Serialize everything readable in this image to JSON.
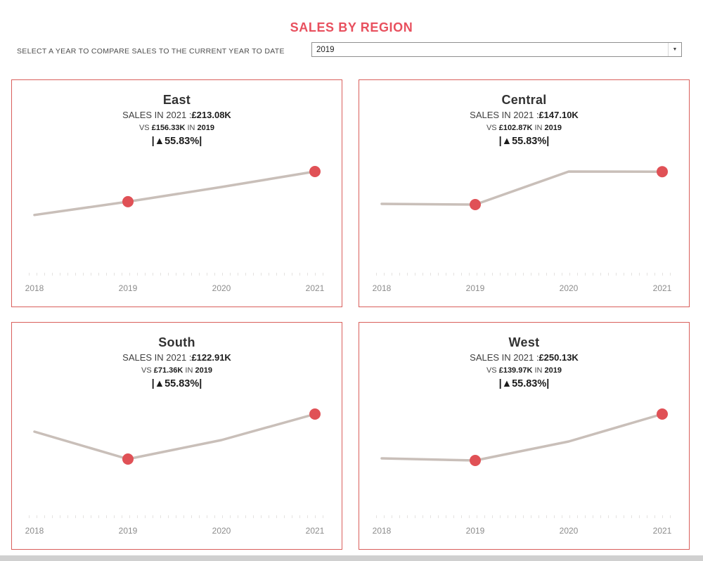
{
  "page": {
    "title": "SALES BY REGION",
    "filter_label": "SELECT A YEAR TO COMPARE SALES TO THE CURRENT YEAR TO DATE",
    "year_dropdown": {
      "value": "2019",
      "arrow_icon": "▼"
    }
  },
  "colors": {
    "title": "#e8505e",
    "panel_border": "#d95f5b",
    "marker": "#e05156",
    "line": "#c9bfb9",
    "axis_label": "#8c8c8c",
    "tick": "#e4e2e0"
  },
  "chart_data": [
    {
      "type": "line",
      "region": "East",
      "x": [
        "2018",
        "2019",
        "2020",
        "2021"
      ],
      "values_k": [
        131.2,
        156.33,
        184.0,
        213.08
      ],
      "ylim": [
        125.7,
        213.08
      ],
      "marker_years": [
        "2019",
        "2021"
      ],
      "sales_prefix": "SALES IN 2021 :",
      "sales_value": "£213.08K",
      "vs_prefix": "VS ",
      "vs_value": "£156.33K",
      "vs_mid": " IN ",
      "vs_year": "2019",
      "change_label": "|▲55.83%|"
    },
    {
      "type": "line",
      "region": "Central",
      "x": [
        "2018",
        "2019",
        "2020",
        "2021"
      ],
      "values_k": [
        103.8,
        102.87,
        147.3,
        147.1
      ],
      "ylim": [
        84.9,
        147.3
      ],
      "marker_years": [
        "2019",
        "2021"
      ],
      "sales_prefix": "SALES IN 2021 :",
      "sales_value": "£147.10K",
      "vs_prefix": "VS ",
      "vs_value": "£102.87K",
      "vs_mid": " IN ",
      "vs_year": "2019",
      "change_label": "|▲55.83%|"
    },
    {
      "type": "line",
      "region": "South",
      "x": [
        "2018",
        "2019",
        "2020",
        "2021"
      ],
      "values_k": [
        102.8,
        71.36,
        93.1,
        122.91
      ],
      "ylim": [
        69.75,
        122.91
      ],
      "marker_years": [
        "2019",
        "2021"
      ],
      "sales_prefix": "SALES IN 2021 :",
      "sales_value": "£122.91K",
      "vs_prefix": "VS ",
      "vs_value": "£71.36K",
      "vs_mid": " IN ",
      "vs_year": "2019",
      "change_label": "|▲55.83%|"
    },
    {
      "type": "line",
      "region": "West",
      "x": [
        "2018",
        "2019",
        "2020",
        "2021"
      ],
      "values_k": [
        145.0,
        139.97,
        185.0,
        250.13
      ],
      "ylim": [
        139.97,
        250.13
      ],
      "marker_years": [
        "2019",
        "2021"
      ],
      "sales_prefix": "SALES IN 2021 :",
      "sales_value": "£250.13K",
      "vs_prefix": "VS ",
      "vs_value": "£139.97K",
      "vs_mid": " IN ",
      "vs_year": "2019",
      "change_label": "|▲55.83%|"
    }
  ]
}
